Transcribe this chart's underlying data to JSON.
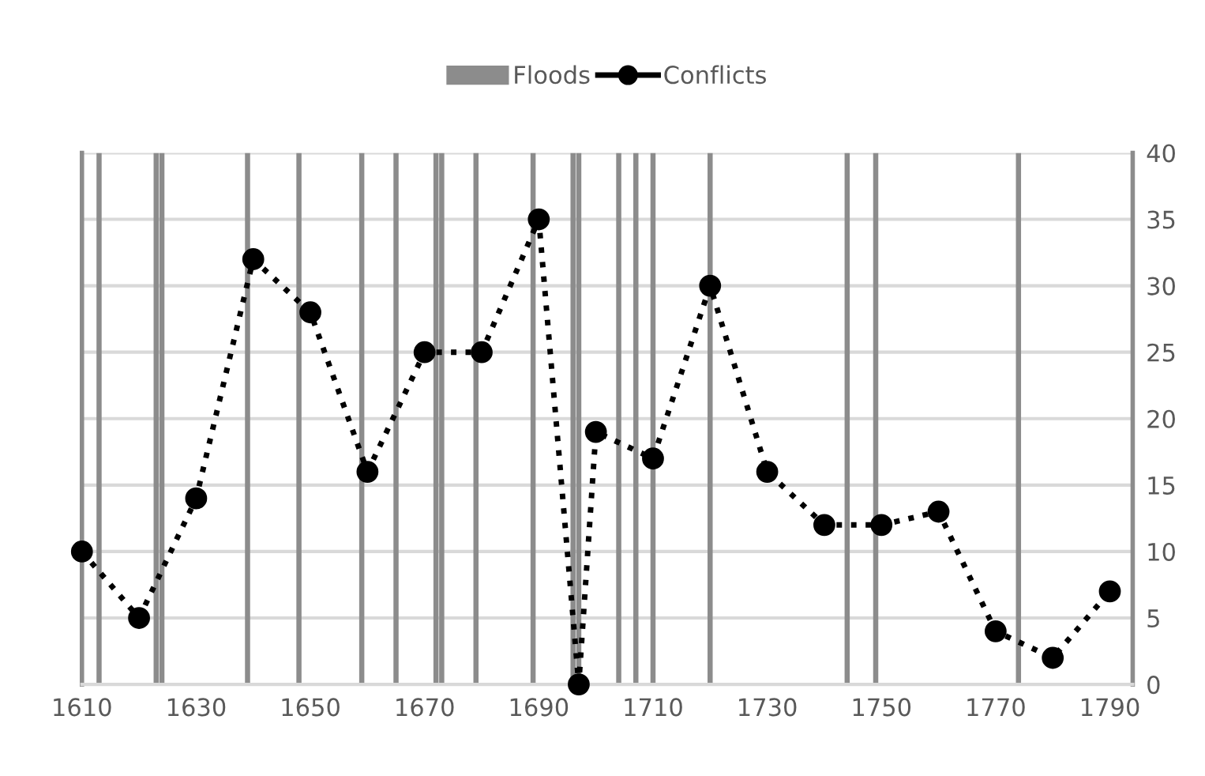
{
  "chart_data": {
    "type": "line",
    "legend": "top",
    "grid": "y",
    "xlim": [
      1610,
      1794
    ],
    "xticks": [
      1610,
      1630,
      1650,
      1670,
      1690,
      1710,
      1730,
      1750,
      1770,
      1790
    ],
    "ylim": [
      0,
      40
    ],
    "yticks": [
      0,
      5,
      10,
      15,
      20,
      25,
      30,
      35,
      40
    ],
    "series": [
      {
        "name": "Floods",
        "type": "bar",
        "color": "#8c8c8c",
        "x": [
          1613,
          1623,
          1624,
          1639,
          1648,
          1659,
          1665,
          1672,
          1673,
          1679,
          1689,
          1696,
          1697,
          1704,
          1707,
          1710,
          1720,
          1744,
          1749,
          1774
        ],
        "values": [
          40,
          40,
          40,
          40,
          40,
          40,
          40,
          40,
          40,
          40,
          40,
          40,
          40,
          40,
          40,
          40,
          40,
          40,
          40,
          40
        ]
      },
      {
        "name": "Conflicts",
        "color": "#000000",
        "marker": "circle",
        "line_style": "dotted",
        "x": [
          1610,
          1620,
          1630,
          1640,
          1650,
          1660,
          1670,
          1680,
          1690,
          1697,
          1700,
          1710,
          1720,
          1730,
          1740,
          1750,
          1760,
          1770,
          1780,
          1790
        ],
        "values": [
          10,
          5,
          14,
          32,
          28,
          16,
          25,
          25,
          35,
          0,
          19,
          17,
          30,
          16,
          12,
          12,
          13,
          4,
          2,
          7
        ]
      }
    ]
  }
}
